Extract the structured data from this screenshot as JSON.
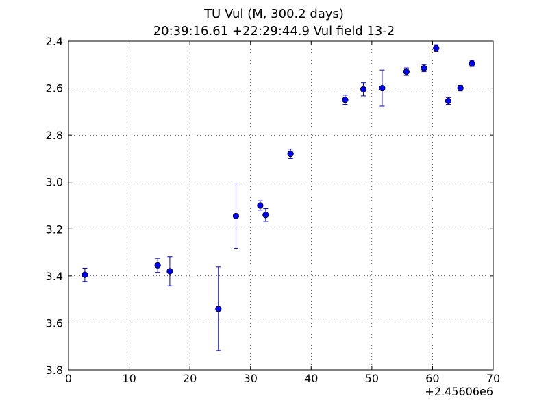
{
  "chart_data": {
    "type": "scatter",
    "title": "TU Vul (M, 300.2 days)",
    "subtitle": "20:39:16.61 +22:29:44.9 Vul field 13-2",
    "xlabel": "",
    "ylabel": "",
    "x_offset_label": "+2.45606e6",
    "xlim": [
      0,
      70
    ],
    "ylim": [
      3.8,
      2.4
    ],
    "y_inverted": true,
    "grid": true,
    "x_ticks": [
      0,
      10,
      20,
      30,
      40,
      50,
      60,
      70
    ],
    "x_tick_labels": [
      "0",
      "10",
      "20",
      "30",
      "40",
      "50",
      "60",
      "70"
    ],
    "y_ticks": [
      2.4,
      2.6,
      2.8,
      3.0,
      3.2,
      3.4,
      3.6,
      3.8
    ],
    "y_tick_labels": [
      "2.4",
      "2.6",
      "2.8",
      "3.0",
      "3.2",
      "3.4",
      "3.6",
      "3.8"
    ],
    "marker_color": "#0000ff",
    "errorbar_color": "#0000cc",
    "series": [
      {
        "points": [
          {
            "x": 2.7,
            "y": 3.395,
            "err": 0.028
          },
          {
            "x": 14.7,
            "y": 3.355,
            "err": 0.03
          },
          {
            "x": 16.7,
            "y": 3.38,
            "err": 0.062
          },
          {
            "x": 24.7,
            "y": 3.54,
            "err": 0.178
          },
          {
            "x": 27.6,
            "y": 3.145,
            "err": 0.137
          },
          {
            "x": 31.6,
            "y": 3.1,
            "err": 0.02
          },
          {
            "x": 32.5,
            "y": 3.14,
            "err": 0.027
          },
          {
            "x": 36.6,
            "y": 2.88,
            "err": 0.02
          },
          {
            "x": 45.6,
            "y": 2.65,
            "err": 0.02
          },
          {
            "x": 48.6,
            "y": 2.605,
            "err": 0.028
          },
          {
            "x": 51.7,
            "y": 2.6,
            "err": 0.077
          },
          {
            "x": 55.7,
            "y": 2.53,
            "err": 0.016
          },
          {
            "x": 58.6,
            "y": 2.515,
            "err": 0.015
          },
          {
            "x": 60.6,
            "y": 2.43,
            "err": 0.015
          },
          {
            "x": 62.6,
            "y": 2.655,
            "err": 0.015
          },
          {
            "x": 64.6,
            "y": 2.6,
            "err": 0.012
          },
          {
            "x": 66.5,
            "y": 2.495,
            "err": 0.013
          }
        ]
      }
    ]
  }
}
